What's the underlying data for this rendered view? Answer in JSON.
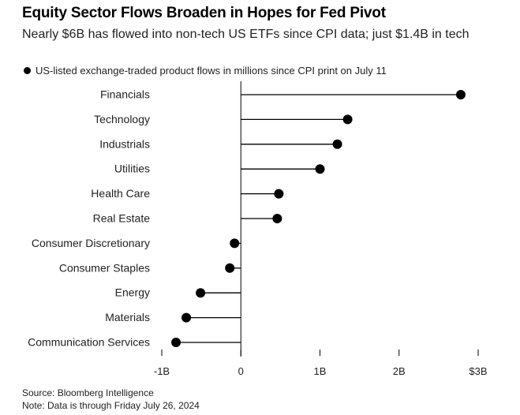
{
  "title": "Equity Sector Flows Broaden in Hopes for Fed Pivot",
  "subtitle": "Nearly $6B has flowed into non-tech US ETFs since CPI data; just $1.4B in tech",
  "legend_label": "US-listed exchange-traded product flows in millions since CPI print on July 11",
  "source": "Source: Bloomberg Intelligence",
  "note": "Note: Data is through Friday July 26, 2024",
  "colors": {
    "marker": "#000000",
    "axis": "#000000",
    "text": "#000000"
  },
  "chart_data": {
    "type": "lollipop",
    "title": "Equity Sector Flows Broaden in Hopes for Fed Pivot",
    "categories": [
      "Financials",
      "Technology",
      "Industrials",
      "Utilities",
      "Health Care",
      "Real Estate",
      "Consumer Discretionary",
      "Consumer Staples",
      "Energy",
      "Materials",
      "Communication Services"
    ],
    "values": [
      2780,
      1350,
      1220,
      1000,
      480,
      460,
      -80,
      -140,
      -510,
      -690,
      -820
    ],
    "unit": "millions USD",
    "xlim": [
      -1000,
      3000
    ],
    "xticks": [
      -1000,
      0,
      1000,
      2000,
      3000
    ],
    "xtick_labels": [
      "-1B",
      "0",
      "1B",
      "2B",
      "$3B"
    ],
    "xlabel": "",
    "ylabel": ""
  }
}
